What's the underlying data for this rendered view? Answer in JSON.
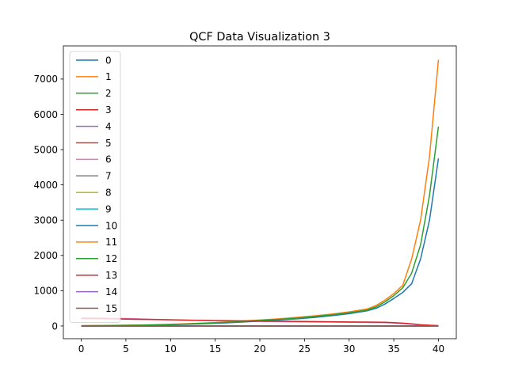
{
  "chart_data": {
    "type": "line",
    "title": "QCF Data Visualization 3",
    "xlabel": "",
    "ylabel": "",
    "xlim": [
      -2,
      42
    ],
    "ylim": [
      -360,
      7940
    ],
    "xticks": [
      0,
      5,
      10,
      15,
      20,
      25,
      30,
      35,
      40
    ],
    "yticks": [
      0,
      1000,
      2000,
      3000,
      4000,
      5000,
      6000,
      7000
    ],
    "legend_position": "upper-left",
    "x": [
      0,
      2,
      4,
      6,
      8,
      10,
      12,
      14,
      16,
      18,
      20,
      22,
      24,
      26,
      28,
      30,
      32,
      33,
      34,
      35,
      36,
      37,
      38,
      39,
      40
    ],
    "series": [
      {
        "name": "0",
        "color": "#1f77b4",
        "values": [
          0,
          0,
          0,
          0,
          0,
          0,
          0,
          0,
          0,
          0,
          0,
          0,
          0,
          0,
          0,
          0,
          0,
          0,
          0,
          0,
          0,
          0,
          0,
          0,
          0
        ]
      },
      {
        "name": "1",
        "color": "#ff7f0e",
        "values": [
          0,
          0,
          0,
          0,
          0,
          0,
          0,
          0,
          0,
          0,
          0,
          0,
          0,
          0,
          0,
          0,
          0,
          0,
          0,
          0,
          0,
          0,
          0,
          0,
          0
        ]
      },
      {
        "name": "2",
        "color": "#2ca02c",
        "values": [
          0,
          0,
          0,
          0,
          0,
          0,
          0,
          0,
          0,
          0,
          0,
          0,
          0,
          0,
          0,
          0,
          0,
          0,
          0,
          0,
          0,
          0,
          0,
          0,
          0
        ]
      },
      {
        "name": "3",
        "color": "#d62728",
        "values": [
          0,
          0,
          0,
          0,
          0,
          0,
          0,
          0,
          0,
          0,
          0,
          0,
          0,
          0,
          0,
          0,
          0,
          0,
          0,
          0,
          0,
          0,
          0,
          0,
          0
        ]
      },
      {
        "name": "4",
        "color": "#9467bd",
        "values": [
          0,
          0,
          0,
          0,
          0,
          0,
          0,
          0,
          0,
          0,
          0,
          0,
          0,
          0,
          0,
          0,
          0,
          0,
          0,
          0,
          0,
          0,
          0,
          0,
          0
        ]
      },
      {
        "name": "5",
        "color": "#8c564b",
        "values": [
          0,
          0,
          0,
          0,
          0,
          0,
          0,
          0,
          0,
          0,
          0,
          0,
          0,
          0,
          0,
          0,
          0,
          0,
          0,
          0,
          0,
          0,
          0,
          0,
          0
        ]
      },
      {
        "name": "6",
        "color": "#e377c2",
        "values": [
          230,
          225,
          215,
          205,
          190,
          175,
          165,
          155,
          145,
          138,
          130,
          125,
          120,
          115,
          110,
          105,
          100,
          98,
          95,
          85,
          70,
          50,
          30,
          15,
          5
        ]
      },
      {
        "name": "7",
        "color": "#7f7f7f",
        "values": [
          0,
          0,
          0,
          0,
          0,
          0,
          0,
          0,
          0,
          0,
          0,
          0,
          0,
          0,
          0,
          0,
          0,
          0,
          0,
          0,
          0,
          0,
          0,
          0,
          0
        ]
      },
      {
        "name": "8",
        "color": "#bcbd22",
        "values": [
          0,
          0,
          0,
          0,
          0,
          0,
          0,
          0,
          0,
          0,
          0,
          0,
          0,
          0,
          0,
          0,
          0,
          0,
          0,
          0,
          0,
          0,
          0,
          0,
          0
        ]
      },
      {
        "name": "9",
        "color": "#17becf",
        "values": [
          0,
          0,
          0,
          0,
          0,
          0,
          0,
          0,
          0,
          0,
          0,
          0,
          0,
          0,
          0,
          0,
          0,
          0,
          0,
          0,
          0,
          0,
          0,
          0,
          0
        ]
      },
      {
        "name": "10",
        "color": "#1f77b4",
        "values": [
          5,
          8,
          12,
          18,
          25,
          35,
          48,
          65,
          85,
          110,
          140,
          170,
          200,
          240,
          290,
          350,
          430,
          500,
          620,
          780,
          950,
          1200,
          1900,
          3000,
          4750
        ]
      },
      {
        "name": "11",
        "color": "#ff7f0e",
        "values": [
          8,
          12,
          18,
          25,
          35,
          48,
          65,
          85,
          110,
          140,
          170,
          200,
          240,
          285,
          335,
          400,
          480,
          580,
          730,
          920,
          1150,
          1900,
          3000,
          4800,
          7550
        ]
      },
      {
        "name": "12",
        "color": "#2ca02c",
        "values": [
          6,
          10,
          15,
          22,
          30,
          42,
          58,
          78,
          100,
          125,
          155,
          185,
          220,
          265,
          315,
          375,
          450,
          540,
          680,
          860,
          1080,
          1500,
          2300,
          3700,
          5650
        ]
      },
      {
        "name": "13",
        "color": "#d62728",
        "values": [
          215,
          210,
          200,
          190,
          185,
          175,
          165,
          155,
          150,
          145,
          140,
          135,
          130,
          125,
          120,
          115,
          110,
          108,
          105,
          95,
          80,
          60,
          35,
          20,
          10
        ]
      },
      {
        "name": "14",
        "color": "#9467bd",
        "values": [
          0,
          0,
          0,
          0,
          0,
          0,
          0,
          0,
          0,
          0,
          0,
          0,
          0,
          0,
          0,
          0,
          0,
          0,
          0,
          0,
          0,
          0,
          0,
          0,
          0
        ]
      },
      {
        "name": "15",
        "color": "#8c564b",
        "values": [
          0,
          0,
          0,
          0,
          0,
          0,
          0,
          0,
          0,
          0,
          0,
          0,
          0,
          0,
          0,
          0,
          0,
          0,
          0,
          0,
          0,
          0,
          0,
          0,
          0
        ]
      }
    ]
  }
}
